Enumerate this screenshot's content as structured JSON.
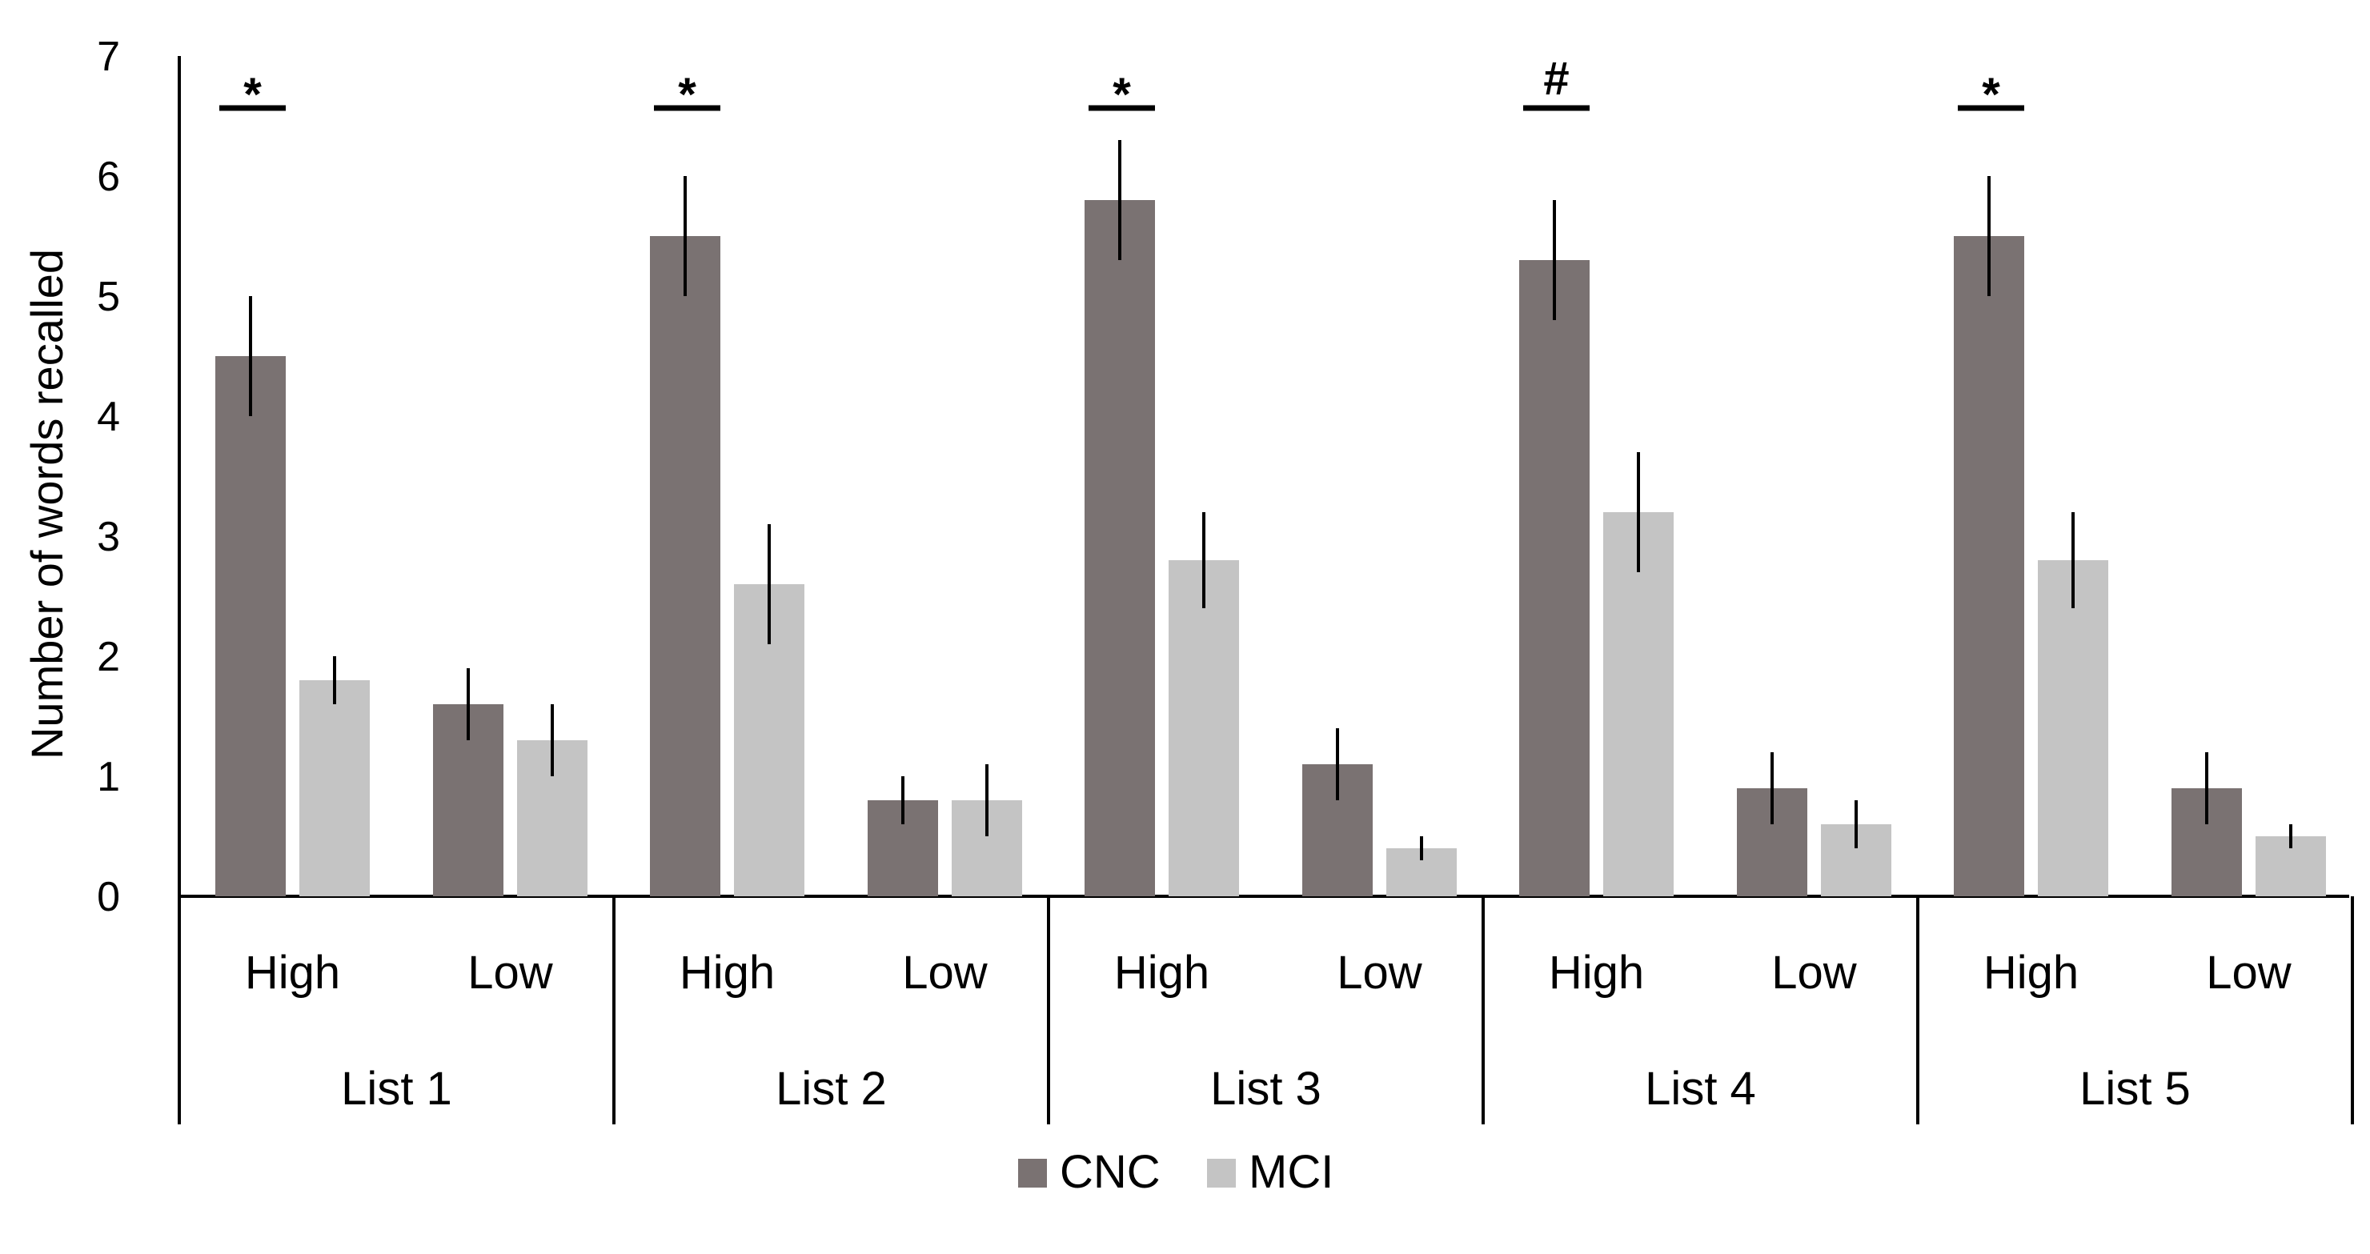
{
  "chart_data": {
    "type": "bar",
    "title": "",
    "xlabel": "",
    "ylabel": "Number of words recalled",
    "ylim": [
      0,
      7
    ],
    "yticks": [
      "0",
      "1",
      "2",
      "3",
      "4",
      "5",
      "6",
      "7"
    ],
    "grid": false,
    "legend_position": "bottom-center",
    "groups": [
      "List 1",
      "List 2",
      "List 3",
      "List 4",
      "List 5"
    ],
    "subcategories": [
      "High",
      "Low"
    ],
    "series": [
      {
        "name": "CNC",
        "color": "#7a7272",
        "values": [
          [
            4.5,
            1.6
          ],
          [
            5.5,
            0.8
          ],
          [
            5.8,
            1.1
          ],
          [
            5.3,
            0.9
          ],
          [
            5.5,
            0.9
          ]
        ],
        "errors": [
          [
            0.5,
            0.3
          ],
          [
            0.5,
            0.2
          ],
          [
            0.5,
            0.3
          ],
          [
            0.5,
            0.3
          ],
          [
            0.5,
            0.3
          ]
        ]
      },
      {
        "name": "MCI",
        "color": "#c4c4c4",
        "values": [
          [
            1.8,
            1.3
          ],
          [
            2.6,
            0.8
          ],
          [
            2.8,
            0.4
          ],
          [
            3.2,
            0.6
          ],
          [
            2.8,
            0.5
          ]
        ],
        "errors": [
          [
            0.2,
            0.3
          ],
          [
            0.5,
            0.3
          ],
          [
            0.4,
            0.1
          ],
          [
            0.5,
            0.2
          ],
          [
            0.4,
            0.1
          ]
        ]
      }
    ],
    "annotations": [
      {
        "group": "List 1",
        "sub": "High",
        "symbol": "*"
      },
      {
        "group": "List 2",
        "sub": "High",
        "symbol": "*"
      },
      {
        "group": "List 3",
        "sub": "High",
        "symbol": "*"
      },
      {
        "group": "List 4",
        "sub": "High",
        "symbol": "#"
      },
      {
        "group": "List 5",
        "sub": "High",
        "symbol": "*"
      }
    ]
  }
}
